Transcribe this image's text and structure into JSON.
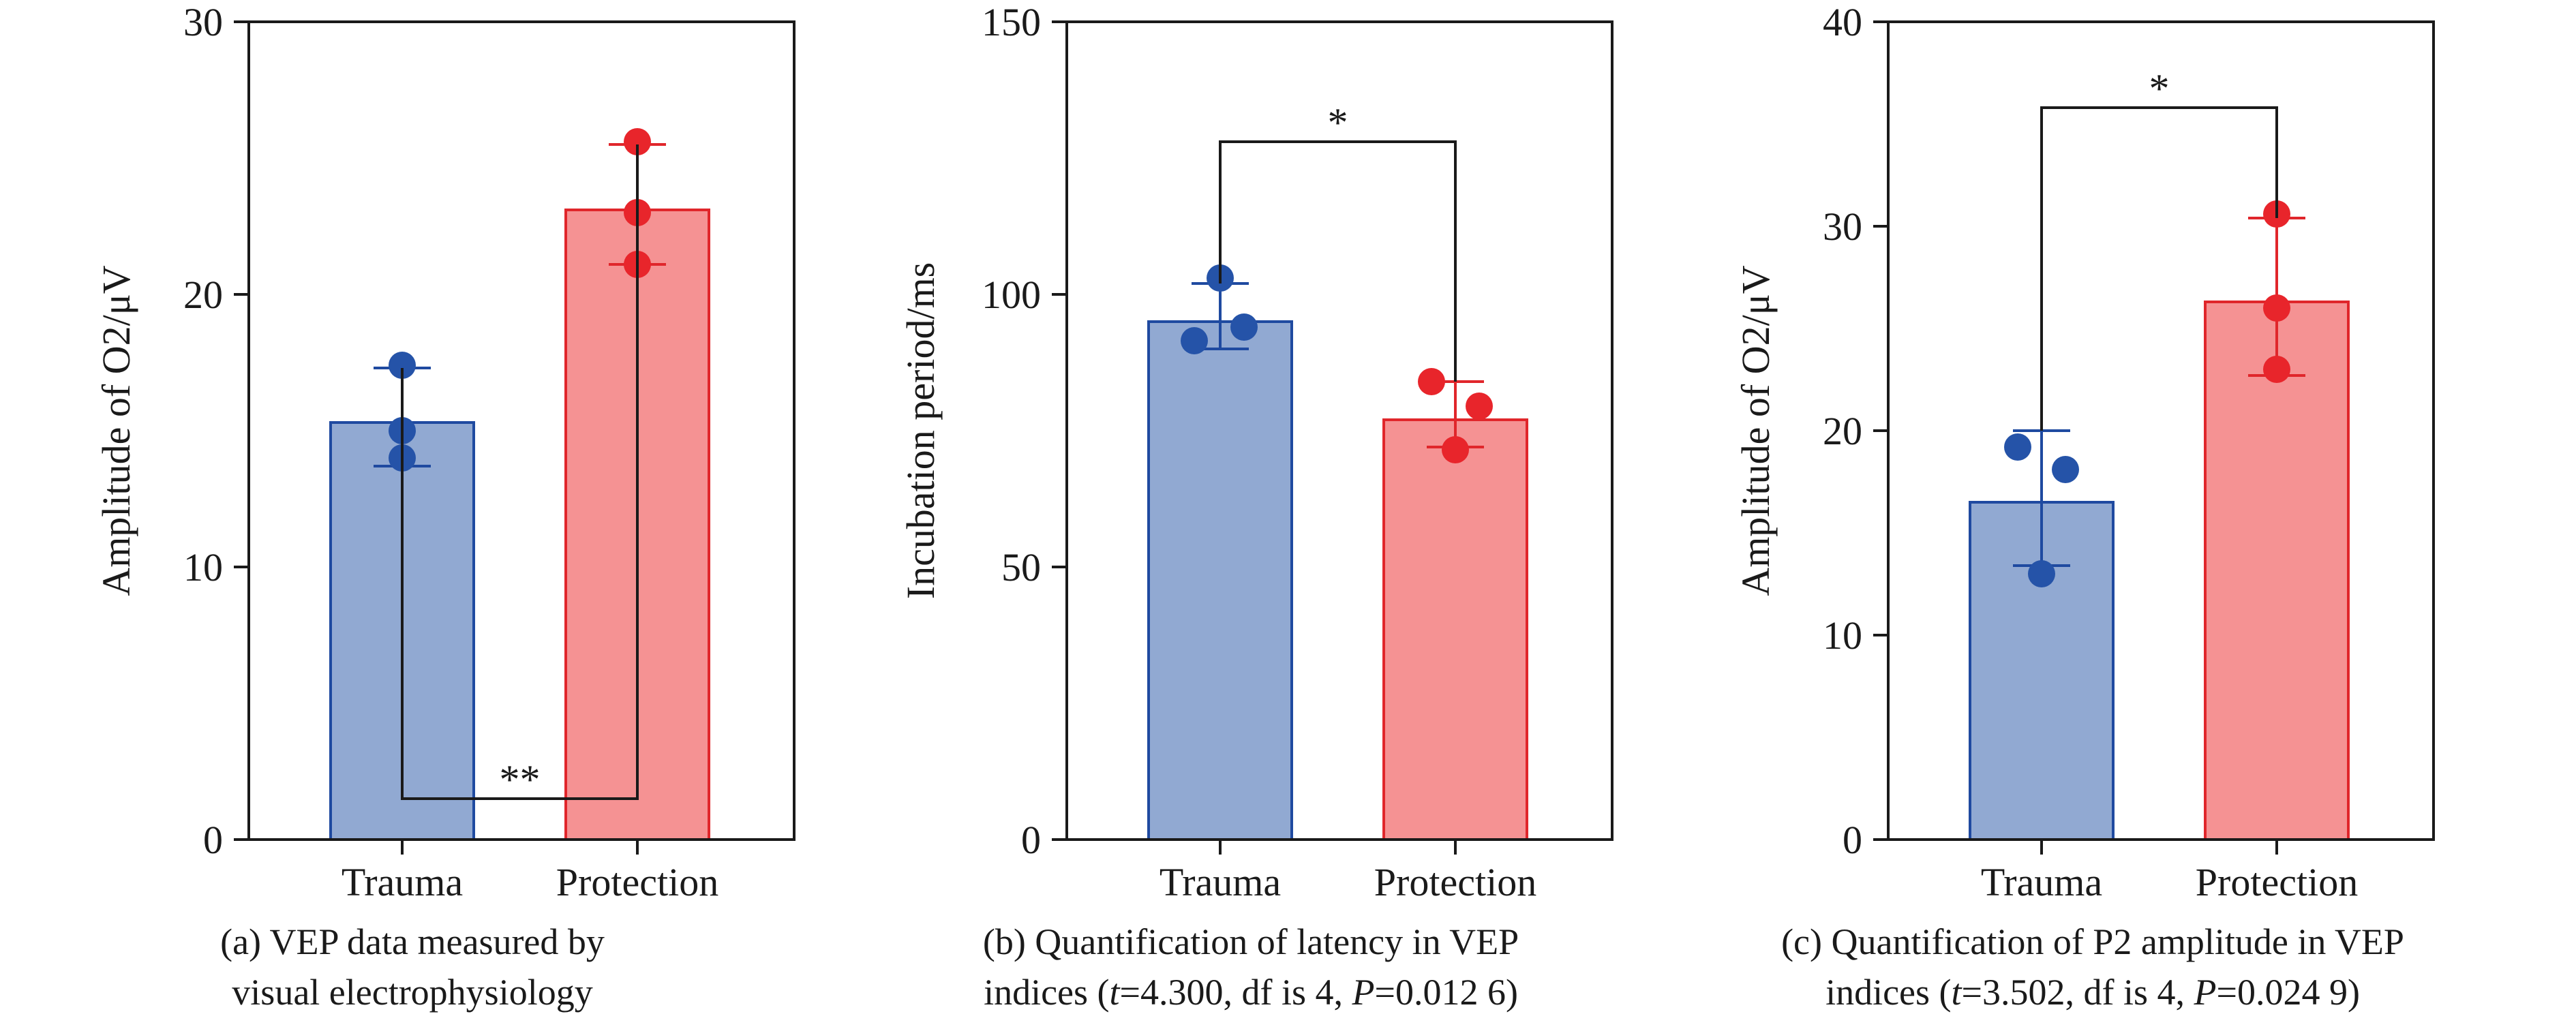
{
  "colors": {
    "trauma_fill": "#91a9d2",
    "trauma_edge": "#1f4aa0",
    "trauma_dot": "#2553a8",
    "protection_fill": "#f59293",
    "protection_edge": "#e0262b",
    "protection_dot": "#e8252b",
    "axis": "#1a1a1a"
  },
  "chart_data": [
    {
      "type": "bar",
      "categories": [
        "Trauma",
        "Protection"
      ],
      "values": [
        15.3,
        23.1
      ],
      "error_low": [
        13.7,
        21.1
      ],
      "error_high": [
        17.3,
        25.5
      ],
      "points": [
        [
          17.4,
          15.0,
          14.0
        ],
        [
          25.6,
          23.0,
          21.1
        ]
      ],
      "ylabel": "Amplitude of O2/μV",
      "ylim": [
        0,
        30
      ],
      "yticks": [
        "0",
        "10",
        "20",
        "30"
      ],
      "significance": "**",
      "caption_lines": [
        "(a) VEP data measured by",
        "visual electrophysiology"
      ]
    },
    {
      "type": "bar",
      "categories": [
        "Trauma",
        "Protection"
      ],
      "values": [
        95,
        77
      ],
      "error_low": [
        90,
        72
      ],
      "error_high": [
        102,
        84
      ],
      "points": [
        [
          103,
          91.5,
          94
        ],
        [
          84,
          79.5,
          71.5
        ]
      ],
      "ylabel": "Incubation period/ms",
      "ylim": [
        0,
        150
      ],
      "yticks": [
        "0",
        "50",
        "100",
        "150"
      ],
      "significance": "*",
      "caption_line1": "(b) Quantification of latency in VEP",
      "caption_line2": {
        "pre": "indices (",
        "t_label": "t",
        "t_value": "=4.300, df is 4, ",
        "p_label": "P",
        "p_value": "=0.012 6)"
      }
    },
    {
      "type": "bar",
      "categories": [
        "Trauma",
        "Protection"
      ],
      "values": [
        16.5,
        26.3
      ],
      "error_low": [
        13.4,
        22.7
      ],
      "error_high": [
        20,
        30.4
      ],
      "points": [
        [
          19.2,
          18.1,
          13
        ],
        [
          30.6,
          26,
          23
        ]
      ],
      "ylabel": "Amplitude of O2/μV",
      "ylim": [
        0,
        40
      ],
      "yticks": [
        "0",
        "10",
        "20",
        "30",
        "40"
      ],
      "significance": "*",
      "caption_line1": "(c) Quantification of P2 amplitude in VEP",
      "caption_line2": {
        "pre": "indices (",
        "t_label": "t",
        "t_value": "=3.502, df is 4, ",
        "p_label": "P",
        "p_value": "=0.024 9)"
      }
    }
  ]
}
